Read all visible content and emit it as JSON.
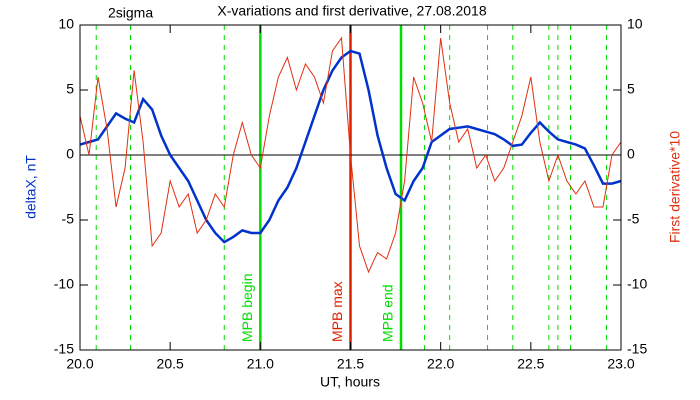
{
  "chart_data": {
    "type": "line",
    "title": "X-variations and first derivative, 27.08.2018",
    "annotation": "2sigma",
    "xlabel": "UT, hours",
    "ylabel": "deltaX, nT",
    "y2label": "First derivative*10",
    "xlim": [
      20,
      23
    ],
    "xticks": [
      {
        "value": 20,
        "label": "20.0"
      },
      {
        "value": 20.5,
        "label": "20.5"
      },
      {
        "value": 21,
        "label": "21.0"
      },
      {
        "value": 21.5,
        "label": "21.5"
      },
      {
        "value": 22,
        "label": "22.0"
      },
      {
        "value": 22.5,
        "label": "22.5"
      },
      {
        "value": 23,
        "label": "23.0"
      }
    ],
    "ylim": [
      -15,
      10
    ],
    "yticks": [
      -15,
      -10,
      -5,
      0,
      5,
      10
    ],
    "y2lim": [
      -15,
      10
    ],
    "y2ticks": [
      -15,
      -10,
      -5,
      0,
      5,
      10
    ],
    "x": [
      20.0,
      20.05,
      20.1,
      20.15,
      20.2,
      20.25,
      20.3,
      20.35,
      20.4,
      20.45,
      20.5,
      20.55,
      20.6,
      20.65,
      20.7,
      20.75,
      20.8,
      20.85,
      20.9,
      20.95,
      21.0,
      21.05,
      21.1,
      21.15,
      21.2,
      21.25,
      21.3,
      21.35,
      21.4,
      21.45,
      21.5,
      21.55,
      21.6,
      21.65,
      21.7,
      21.75,
      21.8,
      21.85,
      21.9,
      21.95,
      22.0,
      22.05,
      22.1,
      22.15,
      22.2,
      22.25,
      22.3,
      22.35,
      22.4,
      22.45,
      22.5,
      22.55,
      22.6,
      22.65,
      22.7,
      22.75,
      22.8,
      22.85,
      22.9,
      22.95,
      23.0
    ],
    "series": [
      {
        "name": "deltaX, nT",
        "color": "#0033cc",
        "values": [
          0.8,
          1.0,
          1.2,
          2.2,
          3.2,
          2.8,
          2.5,
          4.3,
          3.5,
          1.5,
          0,
          -1,
          -2,
          -3.5,
          -5,
          -6,
          -6.7,
          -6.3,
          -5.8,
          -6,
          -6,
          -5,
          -3.5,
          -2.5,
          -1,
          1,
          3,
          5,
          6.5,
          7.5,
          8,
          7.8,
          5,
          1.5,
          -1,
          -3,
          -3.5,
          -2,
          -1,
          1,
          1.5,
          2,
          2.1,
          2.2,
          2,
          1.8,
          1.6,
          1.2,
          0.7,
          0.8,
          1.7,
          2.5,
          1.8,
          1.2,
          1,
          0.8,
          0.5,
          -0.8,
          -2.2,
          -2.2,
          -2.0
        ]
      },
      {
        "name": "First derivative*10",
        "color": "#e03010",
        "axis": "y2",
        "values": [
          3,
          0,
          6,
          2,
          -4,
          -1,
          6.5,
          1,
          -7,
          -6,
          -2,
          -4,
          -3,
          -6,
          -5,
          -3,
          -4,
          0,
          2.5,
          0,
          -1,
          3,
          6,
          7.5,
          5,
          7,
          6,
          4,
          8,
          9,
          0,
          -7,
          -9,
          -7.5,
          -8,
          -6,
          -2,
          6,
          4,
          1,
          9,
          4,
          1,
          2,
          -1,
          0,
          -2,
          -1,
          1,
          3,
          6,
          1,
          -2,
          0,
          -2,
          -3,
          -2,
          -4,
          -4,
          0,
          1
        ]
      }
    ],
    "markers": [
      {
        "x": 20.09,
        "color": "#00dd00",
        "style": "dashed"
      },
      {
        "x": 20.28,
        "color": "#00dd00",
        "style": "dashed"
      },
      {
        "x": 20.8,
        "color": "#00dd00",
        "style": "dashed"
      },
      {
        "x": 21.0,
        "color": "#00dd00",
        "style": "solid",
        "label": "MPB begin"
      },
      {
        "x": 21.5,
        "color": "#dd2000",
        "style": "solid",
        "label": "MPB max"
      },
      {
        "x": 21.78,
        "color": "#00dd00",
        "style": "solid",
        "label": "MPB end"
      },
      {
        "x": 21.91,
        "color": "#00dd00",
        "style": "dashed"
      },
      {
        "x": 22.05,
        "color": "#00dd00",
        "style": "dashed"
      },
      {
        "x": 22.26,
        "color": "#00dd00",
        "style": "dashed"
      },
      {
        "x": 22.4,
        "color": "#00dd00",
        "style": "dashed"
      },
      {
        "x": 22.6,
        "color": "#00dd00",
        "style": "dashed"
      },
      {
        "x": 22.65,
        "color": "#00dd00",
        "style": "dashed"
      },
      {
        "x": 22.72,
        "color": "#00dd00",
        "style": "dashed"
      },
      {
        "x": 22.92,
        "color": "#00dd00",
        "style": "dashed"
      }
    ],
    "zero_line": true
  }
}
